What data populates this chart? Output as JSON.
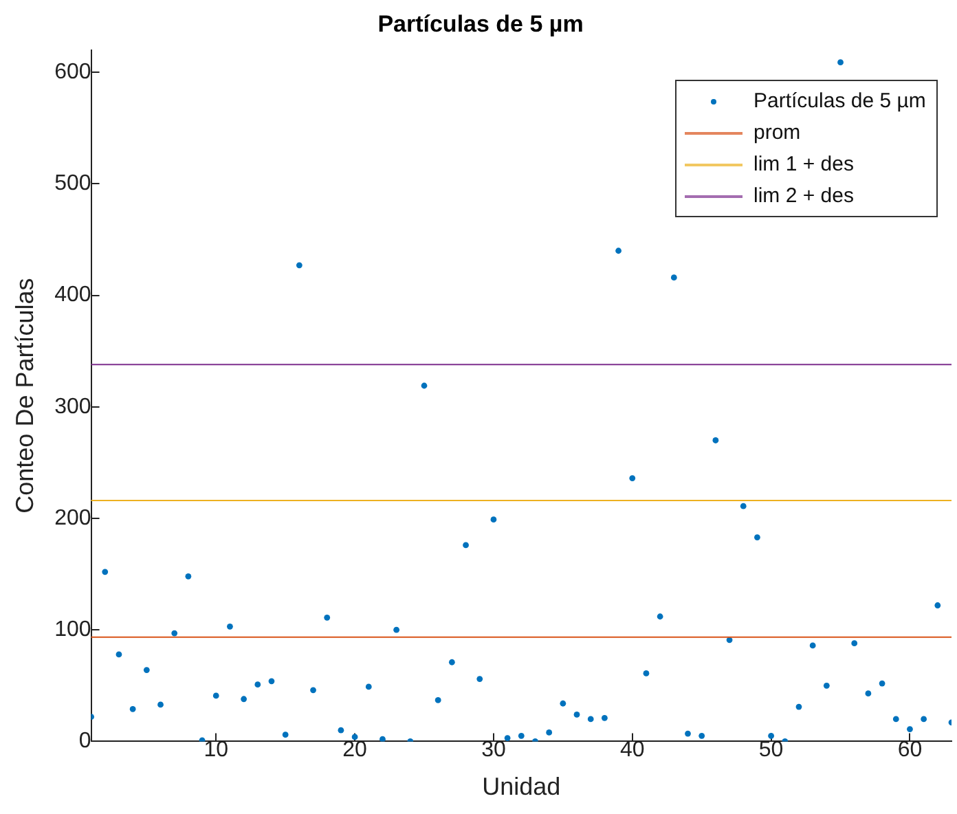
{
  "chart_data": {
    "type": "scatter",
    "title": "Partículas de 5 µm",
    "xlabel": "Unidad",
    "ylabel": "Conteo De Partículas",
    "x": [
      1,
      2,
      3,
      4,
      5,
      6,
      7,
      8,
      9,
      10,
      11,
      12,
      13,
      14,
      15,
      16,
      17,
      18,
      19,
      20,
      21,
      22,
      23,
      24,
      25,
      26,
      27,
      28,
      29,
      30,
      31,
      32,
      33,
      34,
      35,
      36,
      37,
      38,
      39,
      40,
      41,
      42,
      43,
      44,
      45,
      46,
      47,
      48,
      49,
      50,
      51,
      52,
      53,
      54,
      55,
      56,
      57,
      58,
      59,
      60,
      61,
      62,
      63
    ],
    "series": [
      {
        "name": "Partículas de 5 µm",
        "color": "#0072bd",
        "values": [
          22,
          152,
          78,
          29,
          64,
          33,
          97,
          148,
          1,
          41,
          103,
          38,
          51,
          54,
          6,
          427,
          46,
          111,
          10,
          4,
          49,
          2,
          100,
          0,
          319,
          37,
          71,
          176,
          56,
          199,
          3,
          5,
          0,
          8,
          34,
          24,
          20,
          21,
          440,
          236,
          61,
          112,
          416,
          7,
          5,
          270,
          91,
          211,
          183,
          5,
          0,
          31,
          86,
          50,
          609,
          88,
          43,
          52,
          20,
          11,
          20,
          122,
          17
        ]
      }
    ],
    "ref_lines": [
      {
        "axis": "y",
        "value": 93.5,
        "label": "prom",
        "color": "#d95319"
      },
      {
        "axis": "y",
        "value": 216,
        "label": "lim 1 + des",
        "color": "#edb120"
      },
      {
        "axis": "y",
        "value": 338,
        "label": "lim 2 + des",
        "color": "#7e2f8e"
      }
    ],
    "xlim": [
      1,
      63
    ],
    "xticks": [
      10,
      20,
      30,
      40,
      50,
      60
    ],
    "ylim": [
      0,
      620
    ],
    "yticks": [
      0,
      100,
      200,
      300,
      400,
      500,
      600
    ],
    "grid": false,
    "legend": "top right",
    "marker": "circle"
  }
}
